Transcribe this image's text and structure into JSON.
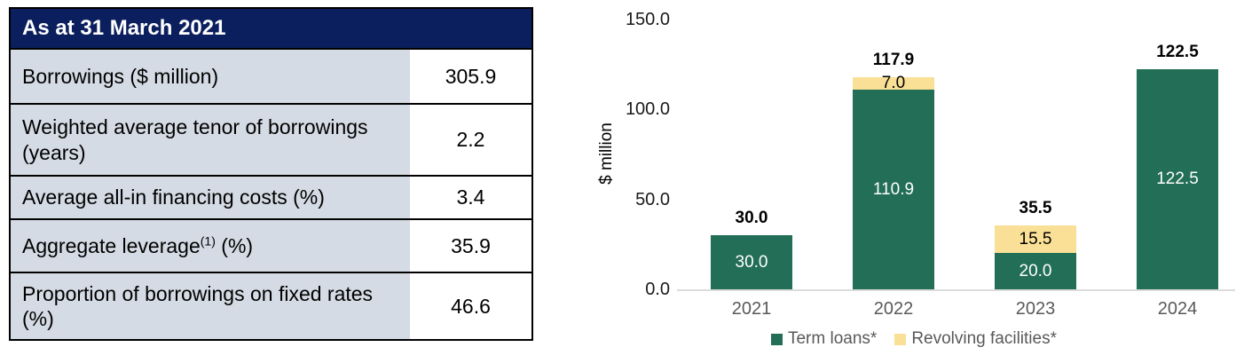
{
  "table": {
    "header": "As at 31 March 2021",
    "rows": [
      {
        "label": "Borrowings ($ million)",
        "value": "305.9"
      },
      {
        "label": "Weighted average tenor of borrowings (years)",
        "value": "2.2"
      },
      {
        "label": "Average all-in financing costs (%)",
        "value": "3.4"
      },
      {
        "label": "Aggregate leverage",
        "sup": "(1)",
        "suffix": " (%)",
        "value": "35.9"
      },
      {
        "label": "Proportion of borrowings on fixed rates (%)",
        "value": "46.6"
      }
    ]
  },
  "chart_data": {
    "type": "bar",
    "stacked": true,
    "title": "",
    "xlabel": "",
    "ylabel": "$ million",
    "categories": [
      "2021",
      "2022",
      "2023",
      "2024"
    ],
    "series": [
      {
        "name": "Term loans*",
        "color": "#236E56",
        "label_color": "#FFFFFF",
        "values": [
          30.0,
          110.9,
          20.0,
          122.5
        ],
        "labels": [
          "30.0",
          "110.9",
          "20.0",
          "122.5"
        ]
      },
      {
        "name": "Revolving facilities*",
        "color": "#FAE096",
        "label_color": "#000000",
        "values": [
          0,
          7.0,
          15.5,
          0
        ],
        "labels": [
          "",
          "7.0",
          "15.5",
          ""
        ]
      }
    ],
    "totals": [
      "30.0",
      "117.9",
      "35.5",
      "122.5"
    ],
    "ylim": [
      0,
      150
    ],
    "yticks": [
      0,
      50,
      100,
      150
    ],
    "ytick_labels": [
      "0.0",
      "50.0",
      "100.0",
      "150.0"
    ],
    "grid": false,
    "legend_position": "bottom"
  },
  "colors": {
    "table_header_bg": "#0B1F5E",
    "table_header_text": "#FFFFFF",
    "table_label_bg": "#D5DBE4",
    "table_border": "#000000",
    "term_loans": "#236E56",
    "revolving_facilities": "#FAE096",
    "axis_line": "#DCDCDC",
    "axis_text_gray": "#595959",
    "total_label_text": "#000000"
  }
}
